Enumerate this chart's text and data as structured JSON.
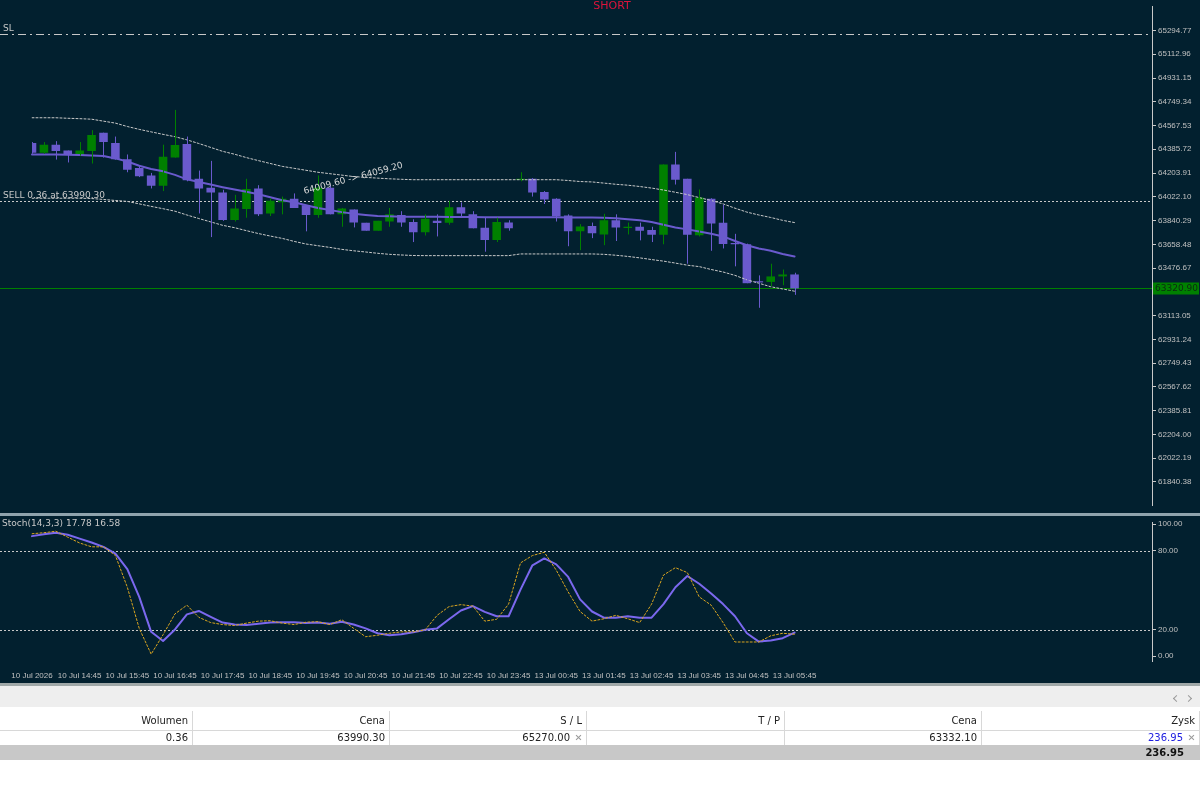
{
  "chart_data": [
    {
      "type": "candlestick",
      "title": "SHORT",
      "categories": [
        null,
        null,
        null,
        null,
        null,
        null,
        null,
        null,
        null,
        null,
        null,
        null,
        null,
        null,
        null,
        null,
        null,
        null,
        null,
        null,
        null,
        null,
        null,
        null,
        null,
        null,
        null,
        null,
        null,
        null,
        null,
        null,
        null,
        null,
        null,
        null,
        null,
        null,
        null,
        null,
        null,
        null,
        null,
        null,
        null,
        null,
        null,
        null,
        null,
        null,
        null,
        null,
        null,
        null,
        null,
        null,
        null,
        null,
        null,
        null,
        null,
        null,
        null,
        null,
        null,
        null,
        null,
        null,
        null,
        null,
        null,
        null,
        null,
        null,
        null,
        null,
        null,
        null,
        null,
        null,
        null,
        null,
        null,
        null,
        null,
        null,
        null,
        null,
        null,
        null,
        null,
        null,
        null,
        null,
        null
      ],
      "ohlc": [
        [
          64433,
          64441,
          64352,
          64359
        ],
        [
          64359,
          64441,
          64352,
          64421
        ],
        [
          64421,
          64448,
          64307,
          64372
        ],
        [
          64376,
          64376,
          64285,
          64346
        ],
        [
          64339,
          64441,
          64337,
          64376
        ],
        [
          64372,
          64532,
          64277,
          64495
        ],
        [
          64513,
          64513,
          64322,
          64441
        ],
        [
          64433,
          64483,
          64307,
          64309
        ],
        [
          64309,
          64346,
          64210,
          64230
        ],
        [
          64242,
          64264,
          64173,
          64180
        ],
        [
          64186,
          64205,
          64086,
          64106
        ],
        [
          64106,
          64421,
          64066,
          64329
        ],
        [
          64322,
          64687,
          64322,
          64418
        ],
        [
          64426,
          64483,
          64141,
          64148
        ],
        [
          64160,
          64223,
          63895,
          64086
        ],
        [
          64091,
          64297,
          63714,
          64056
        ],
        [
          64056,
          64076,
          63838,
          63845
        ],
        [
          63845,
          64037,
          63833,
          63932
        ],
        [
          63929,
          64160,
          63862,
          64081
        ],
        [
          64086,
          64111,
          63875,
          63888
        ],
        [
          63895,
          64011,
          63875,
          63992
        ],
        [
          63981,
          64024,
          63888,
          64007
        ],
        [
          64007,
          64048,
          63937,
          63937
        ],
        [
          63957,
          63962,
          63758,
          63883
        ],
        [
          63883,
          64186,
          63862,
          64091
        ],
        [
          64091,
          64111,
          63888,
          63888
        ],
        [
          63888,
          63937,
          63793,
          63932
        ],
        [
          63925,
          63925,
          63788,
          63825
        ],
        [
          63823,
          63823,
          63763,
          63763
        ],
        [
          63763,
          63838,
          63763,
          63838
        ],
        [
          63833,
          63937,
          63793,
          63888
        ],
        [
          63883,
          63912,
          63793,
          63825
        ],
        [
          63830,
          63850,
          63676,
          63751
        ],
        [
          63751,
          63888,
          63726,
          63855
        ],
        [
          63838,
          63888,
          63719,
          63821
        ],
        [
          63823,
          63992,
          63808,
          63942
        ],
        [
          63942,
          63979,
          63868,
          63895
        ],
        [
          63888,
          63912,
          63781,
          63781
        ],
        [
          63786,
          63862,
          63602,
          63691
        ],
        [
          63691,
          63862,
          63676,
          63830
        ],
        [
          63825,
          63843,
          63763,
          63781
        ],
        [
          64151,
          64210,
          64141,
          64160
        ],
        [
          64160,
          64165,
          64024,
          64056
        ],
        [
          64059,
          64066,
          63967,
          64002
        ],
        [
          64007,
          64011,
          63833,
          63873
        ],
        [
          63880,
          63888,
          63644,
          63758
        ],
        [
          63758,
          63813,
          63614,
          63795
        ],
        [
          63798,
          63825,
          63706,
          63743
        ],
        [
          63734,
          63892,
          63652,
          63843
        ],
        [
          63843,
          63888,
          63684,
          63788
        ],
        [
          63783,
          63825,
          63734,
          63793
        ],
        [
          63793,
          63825,
          63689,
          63763
        ],
        [
          63769,
          63793,
          63676,
          63731
        ],
        [
          63731,
          64270,
          63659,
          64270
        ],
        [
          64270,
          64366,
          64116,
          64153
        ],
        [
          64160,
          64160,
          63510,
          63731
        ],
        [
          63728,
          64078,
          63719,
          64016
        ],
        [
          64007,
          64011,
          63609,
          63818
        ],
        [
          63823,
          63962,
          63627,
          63661
        ],
        [
          63669,
          63739,
          63490,
          63659
        ],
        [
          63659,
          63664,
          63361,
          63361
        ],
        [
          63376,
          63421,
          63173,
          63367
        ],
        [
          63371,
          63510,
          63337,
          63413
        ],
        [
          63413,
          63466,
          63346,
          63428
        ],
        [
          63428,
          63441,
          63272,
          63320.9
        ],
        null,
        null,
        null,
        null,
        null,
        null,
        null,
        null,
        null,
        null,
        null,
        null,
        null,
        null,
        null,
        null,
        null,
        null,
        null,
        null,
        null,
        null,
        null,
        null,
        null,
        null,
        null,
        null,
        null,
        null
      ],
      "colors": [
        "#6a5acd",
        "#008000",
        "#6a5acd",
        "#6a5acd",
        "#008000",
        "#008000",
        "#6a5acd",
        "#6a5acd",
        "#6a5acd",
        "#6a5acd",
        "#6a5acd",
        "#008000",
        "#008000",
        "#6a5acd",
        "#6a5acd",
        "#6a5acd",
        "#6a5acd",
        "#008000",
        "#008000",
        "#6a5acd",
        "#008000",
        "#008000",
        "#6a5acd",
        "#6a5acd",
        "#008000",
        "#6a5acd",
        "#008000",
        "#6a5acd",
        "#6a5acd",
        "#008000",
        "#008000",
        "#6a5acd",
        "#6a5acd",
        "#008000",
        "#6a5acd",
        "#008000",
        "#6a5acd",
        "#6a5acd",
        "#6a5acd",
        "#008000",
        "#6a5acd",
        "#008000",
        "#6a5acd",
        "#6a5acd",
        "#6a5acd",
        "#6a5acd",
        "#008000",
        "#6a5acd",
        "#008000",
        "#6a5acd",
        "#008000",
        "#6a5acd",
        "#6a5acd",
        "#008000",
        "#6a5acd",
        "#6a5acd",
        "#008000",
        "#6a5acd",
        "#6a5acd",
        "#6a5acd",
        "#6a5acd",
        "#6a5acd",
        "#008000",
        "#008000",
        "#6a5acd",
        null,
        null,
        null,
        null,
        null,
        null,
        null,
        null,
        null,
        null,
        null,
        null,
        null,
        null,
        null,
        null,
        null,
        null,
        null,
        null,
        null,
        null,
        null,
        null,
        null,
        null,
        null,
        null,
        null,
        null
      ],
      "series": [
        {
          "type": "line",
          "color": "#6a5acd",
          "values": [
            64346,
            64346,
            64346,
            64344,
            64342,
            64339,
            64334,
            64316,
            64292,
            64260,
            64235,
            64217,
            64190,
            64156,
            64136,
            64116,
            64096,
            64078,
            64061,
            64041,
            64019,
            63996,
            63981,
            63957,
            63937,
            63922,
            63905,
            63892,
            63883,
            63875,
            63873,
            63870,
            63870,
            63870,
            63870,
            63868,
            63868,
            63868,
            63866,
            63866,
            63866,
            63866,
            63865,
            63865,
            63865,
            63864,
            63864,
            63863,
            63862,
            63858,
            63850,
            63843,
            63830,
            63808,
            63788,
            63773,
            63756,
            63739,
            63719,
            63684,
            63652,
            63627,
            63609,
            63585,
            63565,
            null,
            null,
            null,
            null,
            null,
            null,
            null,
            null,
            null,
            null,
            null,
            null,
            null,
            null,
            null,
            null,
            null,
            null,
            null,
            null,
            null,
            null,
            null,
            null,
            null,
            null,
            null,
            null,
            null,
            null
          ]
        },
        {
          "type": "line",
          "color": "#c8c8c8",
          "line_style": "dotted",
          "values": [
            64627,
            64627,
            64627,
            64623,
            64620,
            64616,
            64601,
            64586,
            64560,
            64538,
            64519,
            64500,
            64482,
            64458,
            64430,
            64400,
            64370,
            64348,
            64322,
            64299,
            64277,
            64255,
            64240,
            64225,
            64210,
            64199,
            64188,
            64177,
            64171,
            64165,
            64160,
            64156,
            64153,
            64153,
            64153,
            64153,
            64153,
            64153,
            64153,
            64153,
            64153,
            64153,
            64153,
            64153,
            64153,
            64147,
            64139,
            64136,
            64127,
            64118,
            64111,
            64101,
            64089,
            64074,
            64057,
            64039,
            64016,
            63994,
            63968,
            63935,
            63905,
            63883,
            63864,
            63842,
            63825,
            null,
            null,
            null,
            null,
            null,
            null,
            null,
            null,
            null,
            null,
            null,
            null,
            null,
            null,
            null,
            null,
            null,
            null,
            null,
            null,
            null,
            null,
            null,
            null,
            null,
            null,
            null,
            null,
            null,
            null
          ]
        },
        {
          "type": "line",
          "color": "#c8c8c8",
          "line_style": "dotted",
          "values": [
            64011,
            64011,
            64011,
            64011,
            64011,
            64009,
            64002,
            63994,
            63987,
            63968,
            63949,
            63931,
            63912,
            63883,
            63856,
            63830,
            63804,
            63786,
            63763,
            63741,
            63722,
            63704,
            63681,
            63661,
            63648,
            63635,
            63620,
            63609,
            63600,
            63590,
            63582,
            63577,
            63573,
            63572,
            63572,
            63572,
            63572,
            63572,
            63572,
            63572,
            63572,
            63585,
            63585,
            63585,
            63585,
            63585,
            63585,
            63585,
            63582,
            63575,
            63566,
            63555,
            63542,
            63530,
            63515,
            63499,
            63488,
            63466,
            63447,
            63421,
            63387,
            63361,
            63334,
            63317,
            63300,
            null,
            null,
            null,
            null,
            null,
            null,
            null,
            null,
            null,
            null,
            null,
            null,
            null,
            null,
            null,
            null,
            null,
            null,
            null,
            null,
            null,
            null,
            null,
            null,
            null,
            null,
            null,
            null,
            null,
            null
          ]
        }
      ],
      "ylim": [
        61664,
        65476
      ],
      "yticks": [
        61840.38,
        62022.19,
        {
          "value": 62204,
          "label": "62204.00"
        },
        62385.81,
        62567.62,
        62749.43,
        62931.24,
        63113.05,
        63476.67,
        63658.48,
        63840.29,
        {
          "value": 64022.1,
          "label": "64022.10"
        },
        64203.91,
        64385.72,
        64567.53,
        64749.34,
        64931.15,
        65112.96,
        65294.77
      ],
      "tick_labels": "y",
      "ref_lines": [
        {
          "axis": "y",
          "value": 65270,
          "label": "SL",
          "color": "#c8c8c8",
          "line_style": "dashed"
        },
        {
          "axis": "y",
          "value": 63990.3,
          "label": "SELL 0.36 at 63990.30",
          "color": "#c8c8c8",
          "line_style": "dotted"
        },
        {
          "axis": "y",
          "value": 63320.9,
          "label": "63320.90",
          "color": "#008000"
        }
      ],
      "annotations": [
        "64009.60 -> 64059.20"
      ]
    },
    {
      "type": "line",
      "title": "Stoch(14,3,3) 17.78 16.58",
      "categories": [
        "10 Jul 2026",
        null,
        null,
        null,
        "10 Jul 14:45",
        null,
        null,
        null,
        "10 Jul 15:45",
        null,
        null,
        null,
        "10 Jul 16:45",
        null,
        null,
        null,
        "10 Jul 17:45",
        null,
        null,
        null,
        "10 Jul 18:45",
        null,
        null,
        null,
        "10 Jul 19:45",
        null,
        null,
        null,
        "10 Jul 20:45",
        null,
        null,
        null,
        "10 Jul 21:45",
        null,
        null,
        null,
        "10 Jul 22:45",
        null,
        null,
        null,
        "10 Jul 23:45",
        null,
        null,
        null,
        "13 Jul 00:45",
        null,
        null,
        null,
        "13 Jul 01:45",
        null,
        null,
        null,
        "13 Jul 02:45",
        null,
        null,
        null,
        "13 Jul 03:45",
        null,
        null,
        null,
        "13 Jul 04:45",
        null,
        null,
        null,
        "13 Jul 05:45",
        null,
        null,
        null,
        null,
        null,
        null,
        null,
        null,
        null,
        null,
        null,
        null,
        null,
        null,
        null,
        null,
        null,
        null,
        null,
        null,
        null,
        null,
        null,
        null,
        null,
        null,
        null,
        null,
        null,
        null
      ],
      "series": [
        {
          "color": "#7b68ee",
          "values": [
            90.9,
            92.4,
            93.5,
            92.0,
            89.0,
            86.1,
            82.8,
            77.6,
            65.9,
            44.9,
            18.4,
            11.4,
            20.2,
            31.6,
            34.2,
            29.8,
            25.4,
            23.9,
            23.5,
            24.6,
            25.4,
            25.7,
            25.7,
            25.0,
            25.4,
            24.6,
            26.1,
            23.9,
            21.0,
            17.3,
            15.8,
            16.5,
            18.0,
            19.9,
            21.0,
            27.9,
            34.6,
            37.9,
            33.5,
            30.2,
            30.2,
            50.4,
            68.8,
            74.0,
            69.5,
            60.0,
            43.0,
            33.8,
            29.1,
            29.1,
            30.2,
            29.1,
            29.1,
            39.4,
            52.2,
            60.7,
            54.8,
            47.5,
            39.4,
            30.2,
            17.3,
            11.0,
            11.8,
            13.6,
            17.78,
            null,
            null,
            null,
            null,
            null,
            null,
            null,
            null,
            null,
            null,
            null,
            null,
            null,
            null,
            null,
            null,
            null,
            null,
            null,
            null,
            null,
            null,
            null,
            null,
            null,
            null,
            null,
            null,
            null,
            null
          ]
        },
        {
          "color": "#daa520",
          "line_style": "dotted",
          "values": [
            92.7,
            93.5,
            94.6,
            90.1,
            85.7,
            82.8,
            82.8,
            76.2,
            52.2,
            21.0,
            1.5,
            16.2,
            32.0,
            38.6,
            29.4,
            25.4,
            23.9,
            23.2,
            25.0,
            26.5,
            26.8,
            25.0,
            23.9,
            25.7,
            26.1,
            23.9,
            27.6,
            21.0,
            14.7,
            15.8,
            17.3,
            18.4,
            18.4,
            19.9,
            30.9,
            37.5,
            39.0,
            37.9,
            26.5,
            27.9,
            39.4,
            70.6,
            76.2,
            78.7,
            65.1,
            48.6,
            33.8,
            26.5,
            28.3,
            30.9,
            28.3,
            25.4,
            39.4,
            61.4,
            67.0,
            63.3,
            44.9,
            38.6,
            25.4,
            10.7,
            10.7,
            10.7,
            15.4,
            17.3,
            16.58,
            null,
            null,
            null,
            null,
            null,
            null,
            null,
            null,
            null,
            null,
            null,
            null,
            null,
            null,
            null,
            null,
            null,
            null,
            null,
            null,
            null,
            null,
            null,
            null,
            null,
            null,
            null,
            null,
            null,
            null
          ]
        }
      ],
      "ylim": [
        -4,
        101
      ],
      "yticks": [
        {
          "value": 0,
          "label": "0.00"
        },
        {
          "value": 20,
          "label": "20.00"
        },
        {
          "value": 80,
          "label": "80.00"
        },
        {
          "value": 100,
          "label": "100.00"
        }
      ],
      "ref_lines": [
        {
          "axis": "y",
          "value": 80,
          "color": "#c8c8c8",
          "line_style": "dotted"
        },
        {
          "axis": "y",
          "value": 20,
          "color": "#c8c8c8",
          "line_style": "dotted"
        }
      ]
    },
    {
      "type": "other",
      "annotations": [
        "Wolumen",
        "Cena",
        "S / L",
        "T / P",
        "Cena",
        "Zysk",
        "0.36",
        "63990.30",
        "65270.00",
        "63332.10",
        "236.95",
        "236.95"
      ]
    }
  ]
}
